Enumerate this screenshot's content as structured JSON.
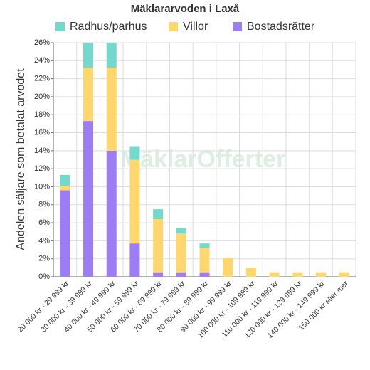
{
  "chart_data": {
    "type": "stacked-bar",
    "title": "Mäklararvoden i Laxå",
    "y_label": "Andelen säljare som betalat arvodet",
    "watermark": "MäklarOfferter",
    "categories": [
      "20 000 kr - 29 999 kr",
      "30 000 kr - 39 999 kr",
      "40 000 kr - 49 999 kr",
      "50 000 kr - 59 999 kr",
      "60 000 kr - 69 999 kr",
      "70 000 kr - 79 999 kr",
      "80 000 kr - 89 999 kr",
      "90 000 kr - 99 999 kr",
      "100 000 kr - 109 999 kr",
      "110 000 kr - 119 999 kr",
      "120 000 kr - 129 999 kr",
      "140 000 kr - 149 999 kr",
      "150 000 kr eller mer"
    ],
    "series": [
      {
        "name": "Radhus/parhus",
        "color": "#74d8cd",
        "values": [
          1.2,
          2.8,
          2.8,
          1.5,
          1.1,
          0.6,
          0.5,
          0,
          0,
          0,
          0,
          0,
          0
        ]
      },
      {
        "name": "Villor",
        "color": "#ffd76e",
        "values": [
          0.5,
          5.9,
          9.2,
          9.3,
          5.9,
          4.3,
          2.7,
          2.1,
          1.0,
          0.5,
          0.5,
          0.5,
          0.5
        ]
      },
      {
        "name": "Bostadsrätter",
        "color": "#9d7df4",
        "values": [
          9.6,
          17.3,
          14.0,
          3.7,
          0.5,
          0.5,
          0.5,
          0,
          0,
          0,
          0,
          0,
          0
        ]
      }
    ],
    "ylim": [
      0,
      26
    ],
    "yticks": [
      {
        "value": 0,
        "label": "0%"
      },
      {
        "value": 2,
        "label": "2%"
      },
      {
        "value": 4,
        "label": "4%"
      },
      {
        "value": 6,
        "label": "6%"
      },
      {
        "value": 8,
        "label": "8%"
      },
      {
        "value": 10,
        "label": "10%"
      },
      {
        "value": 12,
        "label": "12%"
      },
      {
        "value": 14,
        "label": "14%"
      },
      {
        "value": 16,
        "label": "16%"
      },
      {
        "value": 18,
        "label": "18%"
      },
      {
        "value": 20,
        "label": "20%"
      },
      {
        "value": 22,
        "label": "22%"
      },
      {
        "value": 24,
        "label": "24%"
      },
      {
        "value": 26,
        "label": "26%"
      }
    ],
    "grid": true
  }
}
